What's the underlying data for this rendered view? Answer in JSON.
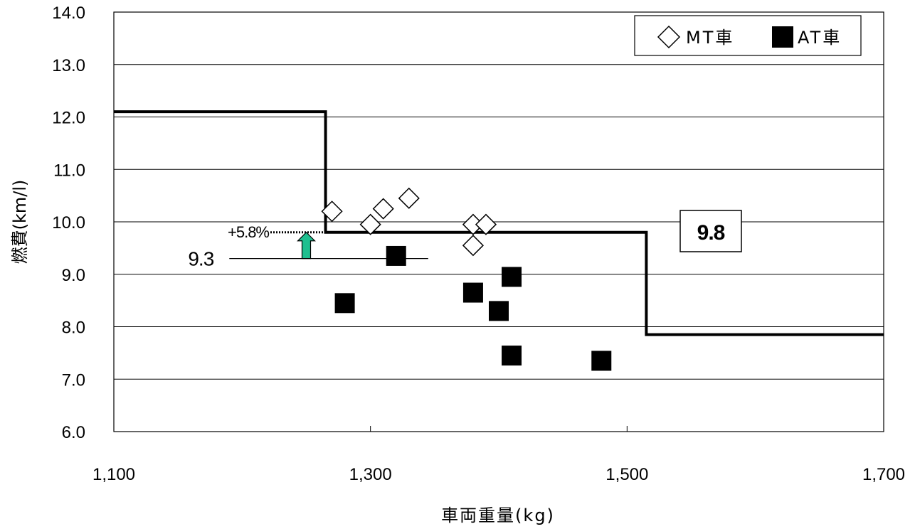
{
  "chart_data": {
    "type": "scatter",
    "xlabel": "車両重量(kg)",
    "ylabel": "燃費(km/l)",
    "xlim": [
      1100,
      1700
    ],
    "ylim": [
      6.0,
      14.0
    ],
    "x_ticks": [
      "1,100",
      "1,300",
      "1,500",
      "1,700"
    ],
    "x_tick_values": [
      1100,
      1300,
      1500,
      1700
    ],
    "y_ticks": [
      "6.0",
      "7.0",
      "8.0",
      "9.0",
      "10.0",
      "11.0",
      "12.0",
      "13.0",
      "14.0"
    ],
    "y_tick_values": [
      6,
      7,
      8,
      9,
      10,
      11,
      12,
      13,
      14
    ],
    "grid": "horizontal",
    "legend_position": "top-right",
    "series": [
      {
        "name": "MT車",
        "marker": "diamond-open",
        "color": "#000000",
        "points": [
          {
            "x": 1270,
            "y": 10.2
          },
          {
            "x": 1300,
            "y": 9.95
          },
          {
            "x": 1310,
            "y": 10.25
          },
          {
            "x": 1330,
            "y": 10.45
          },
          {
            "x": 1380,
            "y": 9.95
          },
          {
            "x": 1390,
            "y": 9.95
          },
          {
            "x": 1380,
            "y": 9.55
          }
        ]
      },
      {
        "name": "AT車",
        "marker": "square-filled",
        "color": "#000000",
        "points": [
          {
            "x": 1280,
            "y": 8.45
          },
          {
            "x": 1320,
            "y": 9.35
          },
          {
            "x": 1380,
            "y": 8.65
          },
          {
            "x": 1410,
            "y": 8.95
          },
          {
            "x": 1400,
            "y": 8.3
          },
          {
            "x": 1410,
            "y": 7.45
          },
          {
            "x": 1480,
            "y": 7.35
          }
        ]
      }
    ],
    "standard_line": {
      "steps": [
        {
          "x_from": 1100,
          "x_to": 1265,
          "y": 12.1
        },
        {
          "x_from": 1265,
          "x_to": 1515,
          "y": 9.8
        },
        {
          "x_from": 1515,
          "x_to": 1700,
          "y": 7.85
        }
      ],
      "color": "#000000"
    },
    "annotations": {
      "average_label": "9.3",
      "average_value": 9.3,
      "average_line_x": [
        1190,
        1345
      ],
      "improvement_label": "+5.8%",
      "improvement_line_y": 9.8,
      "improvement_line_x": [
        1222,
        1265
      ],
      "arrow_x": 1250,
      "arrow_from": 9.3,
      "arrow_to": 9.8,
      "arrow_color": "#1fbf8f",
      "standard_box_label": "9.8"
    }
  }
}
